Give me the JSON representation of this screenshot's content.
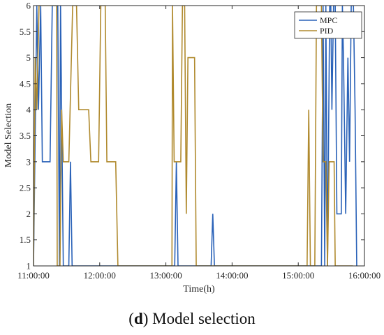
{
  "chart_data": {
    "type": "line",
    "title": "",
    "xlabel": "Time(h)",
    "ylabel": "Model Selection",
    "xlim": [
      "11:00:00",
      "16:00:00"
    ],
    "ylim": [
      1,
      6
    ],
    "x_ticks": [
      "11:00:00",
      "12:00:00",
      "13:00:00",
      "14:00:00",
      "15:00:00",
      "16:00:00"
    ],
    "y_ticks": [
      "1",
      "1.5",
      "2",
      "2.5",
      "3",
      "3.5",
      "4",
      "4.5",
      "5",
      "5.5",
      "6"
    ],
    "grid": false,
    "legend_position": "top-right",
    "series": [
      {
        "name": "MPC",
        "color": "#2a62b8",
        "points": [
          [
            "11:00:00",
            1
          ],
          [
            "11:03:00",
            6
          ],
          [
            "11:04:30",
            4
          ],
          [
            "11:06:30",
            6
          ],
          [
            "11:08:00",
            3
          ],
          [
            "11:15:00",
            3
          ],
          [
            "11:17:00",
            6
          ],
          [
            "11:22:00",
            6
          ],
          [
            "11:23:30",
            1
          ],
          [
            "11:24:30",
            6
          ],
          [
            "11:27:00",
            1
          ],
          [
            "11:32:00",
            1
          ],
          [
            "11:33:30",
            3
          ],
          [
            "11:35:00",
            1
          ],
          [
            "12:12:00",
            1
          ],
          [
            "13:08:00",
            1
          ],
          [
            "13:09:30",
            3
          ],
          [
            "13:11:00",
            1
          ],
          [
            "13:41:00",
            1
          ],
          [
            "13:42:30",
            2
          ],
          [
            "13:44:00",
            1
          ],
          [
            "15:21:00",
            1
          ],
          [
            "15:22:30",
            6
          ],
          [
            "15:24:00",
            1
          ],
          [
            "15:25:00",
            6
          ],
          [
            "15:26:30",
            1
          ],
          [
            "15:28:30",
            6
          ],
          [
            "15:29:30",
            6
          ],
          [
            "15:30:30",
            4
          ],
          [
            "15:32:00",
            6
          ],
          [
            "15:33:30",
            6
          ],
          [
            "15:35:00",
            2
          ],
          [
            "15:39:00",
            2
          ],
          [
            "15:40:00",
            6
          ],
          [
            "15:41:00",
            5
          ],
          [
            "15:43:00",
            2
          ],
          [
            "15:45:00",
            5
          ],
          [
            "15:46:30",
            3
          ],
          [
            "15:48:00",
            6
          ],
          [
            "15:50:00",
            6
          ],
          [
            "15:51:30",
            4
          ],
          [
            "15:53:00",
            1
          ]
        ]
      },
      {
        "name": "PID",
        "color": "#b08a2e",
        "points": [
          [
            "11:00:00",
            1
          ],
          [
            "11:01:30",
            5
          ],
          [
            "11:03:00",
            4
          ],
          [
            "11:05:00",
            6
          ],
          [
            "11:21:00",
            6
          ],
          [
            "11:21:30",
            1
          ],
          [
            "11:24:00",
            1
          ],
          [
            "11:25:30",
            4
          ],
          [
            "11:27:00",
            3
          ],
          [
            "11:32:00",
            3
          ],
          [
            "11:35:30",
            6
          ],
          [
            "11:39:00",
            6
          ],
          [
            "11:41:00",
            4
          ],
          [
            "11:50:00",
            4
          ],
          [
            "11:52:00",
            3
          ],
          [
            "11:59:00",
            3
          ],
          [
            "12:01:00",
            6
          ],
          [
            "12:05:00",
            6
          ],
          [
            "12:06:30",
            3
          ],
          [
            "12:14:30",
            3
          ],
          [
            "12:16:30",
            1
          ],
          [
            "13:05:30",
            1
          ],
          [
            "13:06:00",
            6
          ],
          [
            "13:07:30",
            3
          ],
          [
            "13:13:30",
            3
          ],
          [
            "13:15:00",
            6
          ],
          [
            "13:17:00",
            6
          ],
          [
            "13:18:30",
            2
          ],
          [
            "13:20:00",
            5
          ],
          [
            "13:26:00",
            5
          ],
          [
            "13:27:30",
            1
          ],
          [
            "15:08:00",
            1
          ],
          [
            "15:09:30",
            4
          ],
          [
            "15:11:00",
            1
          ],
          [
            "15:15:00",
            1
          ],
          [
            "15:16:30",
            6
          ],
          [
            "15:21:00",
            6
          ],
          [
            "15:22:30",
            3
          ],
          [
            "15:25:00",
            3
          ],
          [
            "15:26:30",
            1
          ],
          [
            "15:28:00",
            3
          ],
          [
            "15:32:30",
            3
          ],
          [
            "15:33:30",
            1
          ],
          [
            "15:49:30",
            1
          ]
        ]
      }
    ]
  },
  "caption": {
    "letter": "d",
    "text": " Model selection"
  }
}
